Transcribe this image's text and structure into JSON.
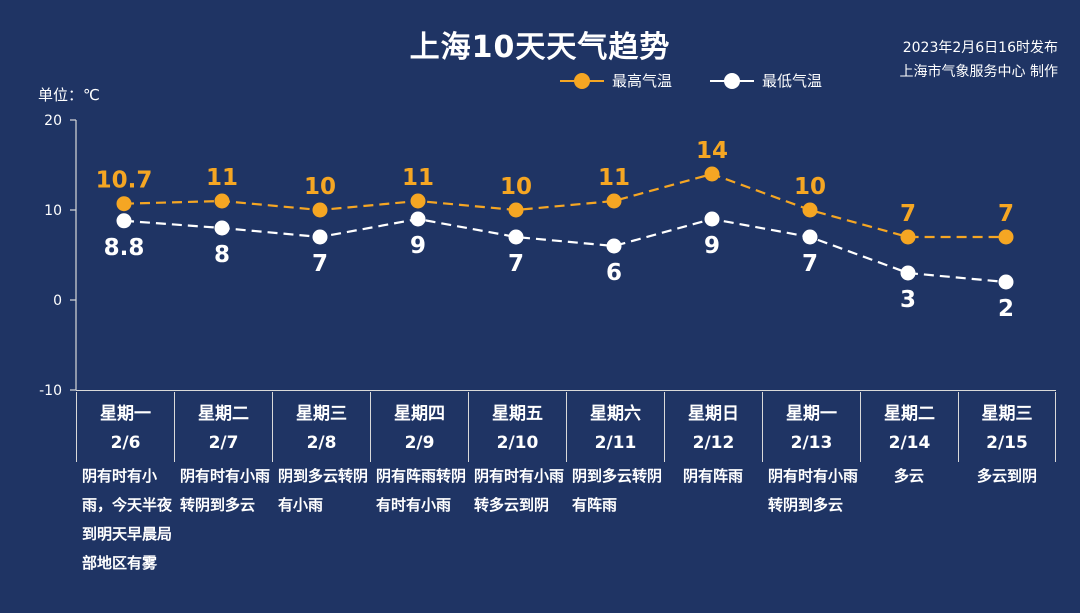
{
  "title": "上海10天天气趋势",
  "publish": {
    "line1": "2023年2月6日16时发布",
    "line2": "上海市气象服务中心 制作"
  },
  "unit_label": "单位：℃",
  "colors": {
    "background": "#1f3464",
    "high": "#f5a623",
    "low": "#ffffff",
    "axis": "#d9d9d9"
  },
  "chart_data": {
    "type": "line",
    "categories": [
      "2/6",
      "2/7",
      "2/8",
      "2/9",
      "2/10",
      "2/11",
      "2/12",
      "2/13",
      "2/14",
      "2/15"
    ],
    "weekdays": [
      "星期一",
      "星期二",
      "星期三",
      "星期四",
      "星期五",
      "星期六",
      "星期日",
      "星期一",
      "星期二",
      "星期三"
    ],
    "series": [
      {
        "name": "最高气温",
        "values": [
          10.7,
          11,
          10,
          11,
          10,
          11,
          14,
          10,
          7,
          7
        ],
        "labels": [
          "10.7",
          "11",
          "10",
          "11",
          "10",
          "11",
          "14",
          "10",
          "7",
          "7"
        ],
        "color": "#f5a623",
        "line_style": "dashed"
      },
      {
        "name": "最低气温",
        "values": [
          8.8,
          8,
          7,
          9,
          7,
          6,
          9,
          7,
          3,
          2
        ],
        "labels": [
          "8.8",
          "8",
          "7",
          "9",
          "7",
          "6",
          "9",
          "7",
          "3",
          "2"
        ],
        "color": "#ffffff",
        "line_style": "dashed"
      }
    ],
    "ylim": [
      -10,
      20
    ],
    "yticks": [
      "20",
      "10",
      "0",
      "-10"
    ],
    "legend_position": "top-right",
    "grid": false
  },
  "descriptions": [
    "阴有时有小雨，今天半夜到明天早晨局部地区有雾",
    "阴有时有小雨转阴到多云",
    "阴到多云转阴有小雨",
    "阴有阵雨转阴有时有小雨",
    "阴有时有小雨转多云到阴",
    "阴到多云转阴有阵雨",
    "阴有阵雨",
    "阴有时有小雨转阴到多云",
    "多云",
    "多云到阴"
  ]
}
